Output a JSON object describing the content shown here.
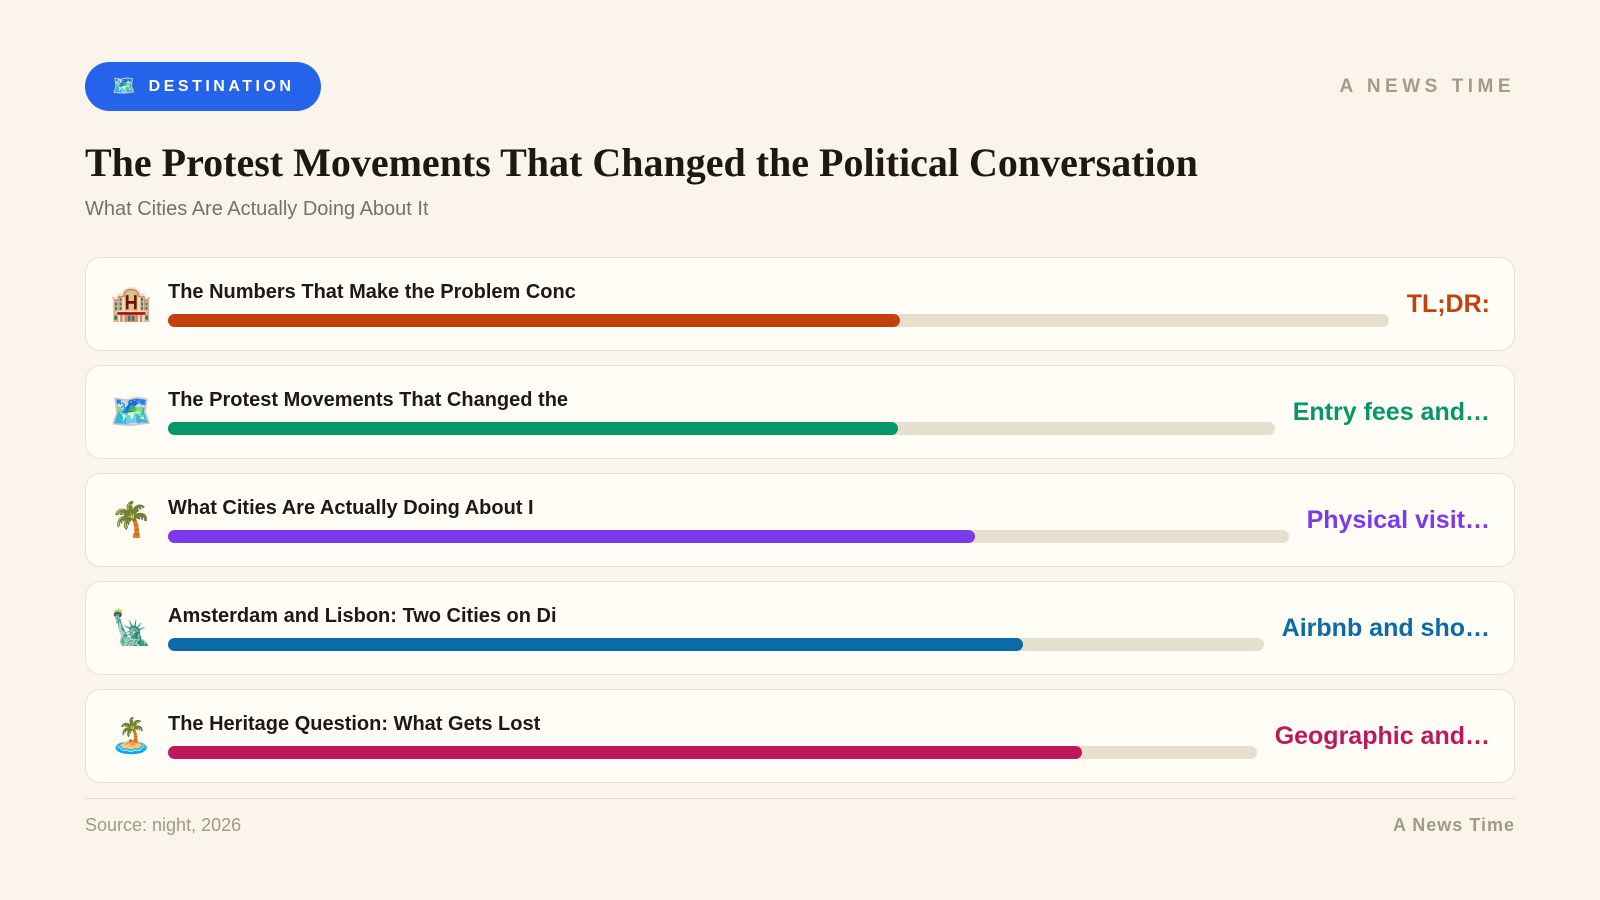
{
  "header": {
    "badge": {
      "icon": "🗺️",
      "label": "DESTINATION"
    },
    "brand": "A NEWS TIME"
  },
  "title": "The Protest Movements That Changed the Political Conversation",
  "subtitle": "What Cities Are Actually Doing About It",
  "rows": [
    {
      "icon_name": "hotel-icon",
      "icon": "🏨",
      "label": "The Numbers That Make the Problem Conc",
      "value": "TL;DR:",
      "color": "#c2410c",
      "fill_percent": 60
    },
    {
      "icon_name": "world-map-icon",
      "icon": "🗺️",
      "label": "The Protest Movements That Changed the",
      "value": "Entry fees and…",
      "color": "#059669",
      "fill_percent": 66
    },
    {
      "icon_name": "palm-tree-icon",
      "icon": "🌴",
      "label": "What Cities Are Actually Doing About I",
      "value": "Physical visit…",
      "color": "#7c3aed",
      "fill_percent": 72
    },
    {
      "icon_name": "statue-of-liberty-icon",
      "icon": "🗽",
      "label": "Amsterdam and Lisbon: Two Cities on Di",
      "value": "Airbnb and sho…",
      "color": "#0c6ba6",
      "fill_percent": 78
    },
    {
      "icon_name": "desert-island-icon",
      "icon": "🏝️",
      "label": "The Heritage Question: What Gets Lost",
      "value": "Geographic and…",
      "color": "#be185d",
      "fill_percent": 84
    }
  ],
  "footer": {
    "source": "Source: night, 2026",
    "brand": "A News Time"
  },
  "colors": {
    "background": "#faf4ea",
    "card_bg": "#fffdf5",
    "card_border": "#ece3d3",
    "bar_track": "#e7dfce",
    "badge_bg": "#2563eb",
    "title_text": "#1e1812",
    "subtitle_text": "#7a7164",
    "brand_text": "#a89b86",
    "footer_text": "#a49886"
  },
  "chart_data": {
    "type": "bar",
    "orientation": "horizontal",
    "title": "The Protest Movements That Changed the Political Conversation",
    "subtitle": "What Cities Are Actually Doing About It",
    "categories": [
      "The Numbers That Make the Problem Conc",
      "The Protest Movements That Changed the",
      "What Cities Are Actually Doing About I",
      "Amsterdam and Lisbon: Two Cities on Di",
      "The Heritage Question: What Gets Lost"
    ],
    "values": [
      60,
      66,
      72,
      78,
      84
    ],
    "value_note": "percent of track filled, estimated from pixels; no numeric labels shown",
    "xlim": [
      0,
      100
    ],
    "bar_colors": [
      "#c2410c",
      "#059669",
      "#7c3aed",
      "#0c6ba6",
      "#be185d"
    ],
    "bar_annotations": [
      "TL;DR:",
      "Entry fees and…",
      "Physical visit…",
      "Airbnb and sho…",
      "Geographic and…"
    ],
    "icons": [
      "🏨",
      "🗺️",
      "🌴",
      "🗽",
      "🏝️"
    ],
    "grid": false,
    "legend": false,
    "source": "Source: night, 2026"
  }
}
